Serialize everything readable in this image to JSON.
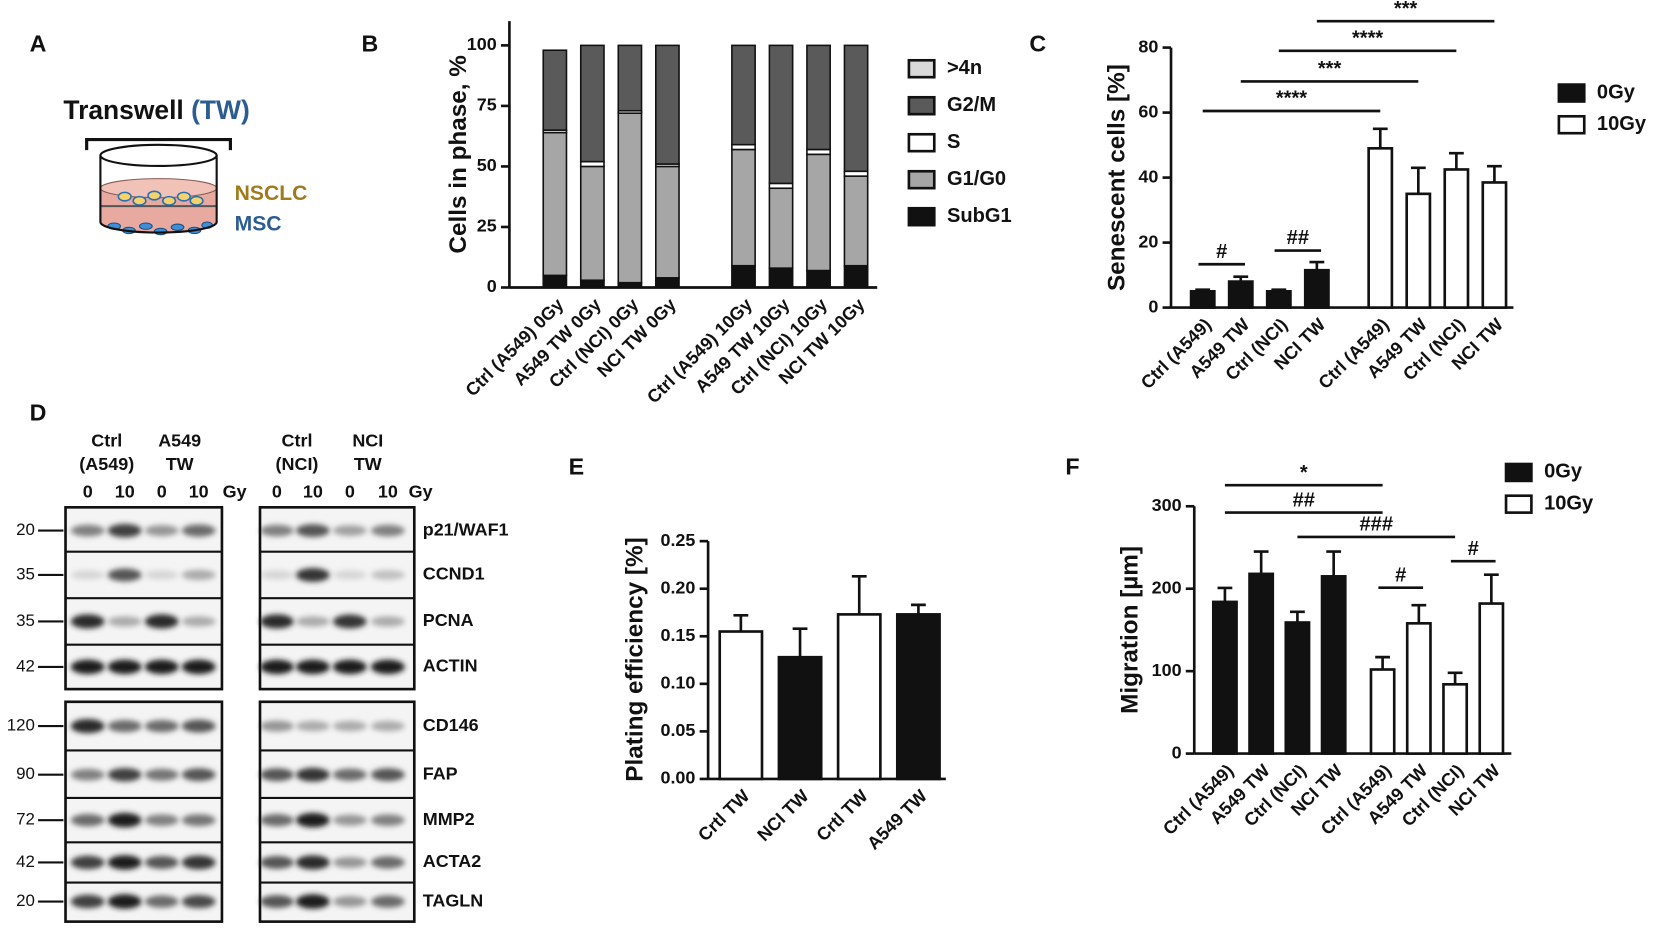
{
  "panel_labels": [
    "A",
    "B",
    "C",
    "D",
    "E",
    "F"
  ],
  "diagram": {
    "title": "Transwell",
    "title_abbr": "(TW)",
    "upper": "NSCLC",
    "lower": "MSC"
  },
  "blot": {
    "groups": [
      {
        "lines": [
          "Ctrl",
          "(A549)"
        ],
        "doses": [
          0,
          10
        ]
      },
      {
        "lines": [
          "A549",
          "TW"
        ],
        "doses": [
          0,
          10
        ]
      },
      {
        "lines": [
          "Ctrl",
          "(NCI)"
        ],
        "doses": [
          0,
          10
        ]
      },
      {
        "lines": [
          "NCI",
          "TW"
        ],
        "doses": [
          0,
          10
        ]
      }
    ],
    "unit": "Gy",
    "markers": [
      20,
      35,
      35,
      42,
      120,
      90,
      72,
      42,
      20
    ],
    "proteins": [
      "p21/WAF1",
      "CCND1",
      "PCNA",
      "ACTIN",
      "CD146",
      "FAP",
      "MMP2",
      "ACTA2",
      "TAGLN"
    ]
  },
  "chart_data": [
    {
      "type": "stacked_bar",
      "ylabel": "Cells in phase, %",
      "categories": [
        "Ctrl (A549) 0Gy",
        "A549 TW 0Gy",
        "Ctrl (NCI) 0Gy",
        "NCI TW 0Gy",
        "Ctrl (A549) 10Gy",
        "A549 TW 10Gy",
        "Ctrl (NCI) 10Gy",
        "NCI TW 10Gy"
      ],
      "series": [
        {
          "name": "SubG1",
          "color": "#111111",
          "values": [
            5,
            3,
            2,
            4,
            9,
            8,
            7,
            9
          ]
        },
        {
          "name": "G1/G0",
          "color": "#a6a6a6",
          "values": [
            59,
            47,
            70,
            46,
            48,
            33,
            48,
            37
          ]
        },
        {
          "name": "S",
          "color": "#ffffff",
          "values": [
            1,
            2,
            1,
            1,
            2,
            2,
            2,
            2
          ]
        },
        {
          "name": "G2/M",
          "color": "#5a5a5a",
          "values": [
            33,
            48,
            27,
            49,
            41,
            57,
            43,
            52
          ]
        },
        {
          "name": ">4n",
          "color": "#d9d9d9",
          "values": [
            0,
            0,
            0,
            0,
            0,
            0,
            0,
            0
          ]
        }
      ],
      "ylim": [
        0,
        110
      ],
      "yticks": [
        0,
        25,
        50,
        75,
        100
      ]
    },
    {
      "type": "bar",
      "ylabel": "Senescent cells [%]",
      "categories": [
        "Ctrl (A549)",
        "A549 TW",
        "Ctrl (NCI)",
        "NCI TW",
        "Ctrl (A549)",
        "A549 TW",
        "Ctrl (NCI)",
        "NCI TW"
      ],
      "series": [
        {
          "name": "0Gy",
          "color": "#111111",
          "values": [
            5,
            8,
            5,
            11.5,
            null,
            null,
            null,
            null
          ],
          "errors": [
            0.5,
            1.5,
            0.5,
            2.5,
            null,
            null,
            null,
            null
          ]
        },
        {
          "name": "10Gy",
          "color": "#ffffff",
          "values": [
            null,
            null,
            null,
            null,
            49,
            35,
            42.5,
            38.5
          ],
          "errors": [
            null,
            null,
            null,
            null,
            6,
            8,
            5,
            5
          ]
        }
      ],
      "ylim": [
        0,
        80
      ],
      "yticks": [
        0,
        20,
        40,
        60,
        80
      ],
      "annotations": [
        "****",
        "***",
        "****",
        "***",
        "#",
        "##"
      ]
    },
    {
      "type": "bar",
      "ylabel": "Plating efficiency [%]",
      "categories": [
        "Crtl TW",
        "NCI TW",
        "Crtl TW",
        "A549 TW"
      ],
      "values": [
        0.155,
        0.128,
        0.173,
        0.173
      ],
      "errors": [
        0.017,
        0.03,
        0.04,
        0.01
      ],
      "colors": [
        "#ffffff",
        "#111111",
        "#ffffff",
        "#111111"
      ],
      "ylim": [
        0,
        0.25
      ],
      "yticks": [
        {
          "value": 0,
          "label": "0.00"
        },
        {
          "value": 0.05,
          "label": "0.05"
        },
        {
          "value": 0.1,
          "label": "0.10"
        },
        {
          "value": 0.15,
          "label": "0.15"
        },
        {
          "value": 0.2,
          "label": "0.20"
        },
        {
          "value": 0.25,
          "label": "0.25"
        }
      ]
    },
    {
      "type": "bar",
      "ylabel": "Migration [µm]",
      "categories": [
        "Ctrl (A549)",
        "A549 TW",
        "Ctrl (NCI)",
        "NCI TW",
        "Ctrl (A549)",
        "A549 TW",
        "Ctrl (NCI)",
        "NCI TW"
      ],
      "series": [
        {
          "name": "0Gy",
          "color": "#111111",
          "values": [
            184,
            218,
            159,
            215,
            null,
            null,
            null,
            null
          ],
          "errors": [
            17,
            27,
            13,
            30,
            null,
            null,
            null,
            null
          ]
        },
        {
          "name": "10Gy",
          "color": "#ffffff",
          "values": [
            null,
            null,
            null,
            null,
            102,
            158,
            84,
            182
          ],
          "errors": [
            null,
            null,
            null,
            null,
            15,
            22,
            14,
            35
          ]
        }
      ],
      "ylim": [
        0,
        300
      ],
      "yticks": [
        0,
        100,
        200,
        300
      ],
      "annotations": [
        "*",
        "##",
        "###",
        "#",
        "#"
      ]
    }
  ]
}
